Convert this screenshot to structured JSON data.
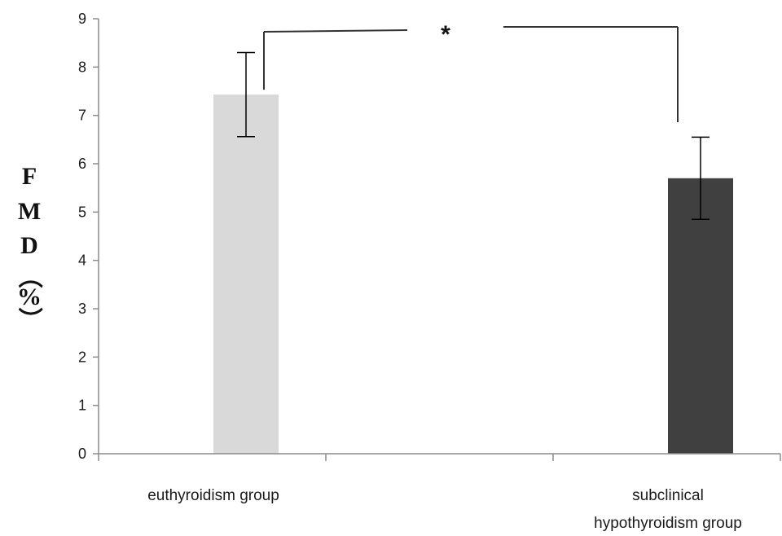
{
  "chart_data": {
    "type": "bar",
    "categories": [
      "euthyroidism group",
      "subclinical hypothyroidism group"
    ],
    "category_lines": [
      [
        "euthyroidism group"
      ],
      [
        "subclinical",
        "hypothyroidism group"
      ]
    ],
    "values": [
      7.43,
      5.7
    ],
    "error": [
      0.87,
      0.85
    ],
    "bar_colors": [
      "#d9d9d9",
      "#404040"
    ],
    "ylim": [
      0,
      9
    ],
    "yticks": [
      "0",
      "1",
      "2",
      "3",
      "4",
      "5",
      "6",
      "7",
      "8",
      "9"
    ],
    "ylabel_chars": [
      "F",
      "M",
      "D",
      "（",
      "%",
      "）"
    ],
    "significance": {
      "label": "*",
      "between": [
        0,
        1
      ]
    },
    "grid": false,
    "legend": "none"
  }
}
